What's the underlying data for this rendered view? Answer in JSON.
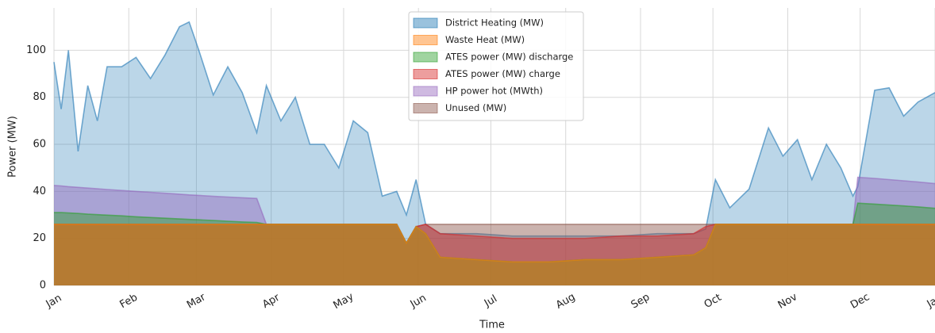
{
  "chart_data": {
    "type": "area",
    "xlabel": "Time",
    "ylabel": "Power (MW)",
    "x": [
      0,
      3,
      6,
      10,
      14,
      18,
      22,
      28,
      34,
      40,
      46,
      52,
      56,
      60,
      66,
      72,
      78,
      84,
      88,
      94,
      100,
      106,
      112,
      118,
      124,
      130,
      136,
      142,
      146,
      150,
      154,
      160,
      175,
      190,
      205,
      220,
      235,
      250,
      265,
      270,
      274,
      280,
      288,
      296,
      302,
      308,
      314,
      320,
      326,
      331,
      333,
      340,
      346,
      352,
      358,
      365
    ],
    "xlim": [
      0,
      365
    ],
    "xticks": [
      {
        "value": 0,
        "label": "Jan"
      },
      {
        "value": 31,
        "label": "Feb"
      },
      {
        "value": 59,
        "label": "Mar"
      },
      {
        "value": 90,
        "label": "Apr"
      },
      {
        "value": 120,
        "label": "May"
      },
      {
        "value": 151,
        "label": "Jun"
      },
      {
        "value": 181,
        "label": "Jul"
      },
      {
        "value": 212,
        "label": "Aug"
      },
      {
        "value": 243,
        "label": "Sep"
      },
      {
        "value": 273,
        "label": "Oct"
      },
      {
        "value": 304,
        "label": "Nov"
      },
      {
        "value": 334,
        "label": "Dec"
      },
      {
        "value": 365,
        "label": "Jan"
      }
    ],
    "ylim": [
      0,
      118
    ],
    "yticks": [
      0,
      20,
      40,
      60,
      80,
      100
    ],
    "grid": true,
    "legend": "upper center",
    "series": [
      {
        "name": "District Heating (MW)",
        "color": "#1f77b4",
        "values": [
          95,
          75,
          100,
          57,
          85,
          70,
          93,
          93,
          97,
          88,
          98,
          110,
          112,
          100,
          81,
          93,
          82,
          65,
          85,
          70,
          80,
          60,
          60,
          50,
          70,
          65,
          38,
          40,
          30,
          45,
          26,
          22,
          22,
          21,
          21,
          21,
          21,
          22,
          22,
          24,
          45,
          33,
          41,
          67,
          55,
          62,
          45,
          60,
          50,
          38,
          42,
          83,
          84,
          72,
          78,
          82
        ]
      },
      {
        "name": "Waste Heat (MW)",
        "color": "#ff7f0e",
        "values": [
          26,
          26,
          26,
          26,
          26,
          26,
          26,
          26,
          26,
          26,
          26,
          26,
          26,
          26,
          26,
          26,
          26,
          26,
          26,
          26,
          26,
          26,
          26,
          26,
          26,
          26,
          26,
          26,
          18,
          25,
          22,
          12,
          11,
          10,
          10,
          11,
          11,
          12,
          13,
          16,
          26,
          26,
          26,
          26,
          26,
          26,
          26,
          26,
          26,
          26,
          26,
          26,
          26,
          26,
          26,
          26
        ]
      },
      {
        "name": "ATES power (MW) discharge",
        "color": "#2ca02c",
        "values": [
          31,
          31,
          30.8,
          30.6,
          30.3,
          30.1,
          29.9,
          29.6,
          29.2,
          28.9,
          28.6,
          28.3,
          28.1,
          27.9,
          27.6,
          27.3,
          27,
          26.8,
          26,
          26,
          26,
          26,
          26,
          26,
          26,
          26,
          26,
          26,
          18,
          25,
          22,
          12,
          11,
          10,
          10,
          11,
          11,
          12,
          13,
          16,
          26,
          26,
          26,
          26,
          26,
          26,
          26,
          26,
          26,
          26,
          35,
          34.6,
          34.2,
          33.8,
          33.4,
          32.8
        ]
      },
      {
        "name": "ATES power (MW) charge",
        "color": "#d62728",
        "values": [
          26,
          26,
          26,
          26,
          26,
          26,
          26,
          26,
          26,
          26,
          26,
          26,
          26,
          26,
          26,
          26,
          26,
          26,
          26,
          26,
          26,
          26,
          26,
          26,
          26,
          26,
          26,
          26,
          18,
          25,
          26,
          22,
          21,
          20,
          20,
          20,
          21,
          21,
          22,
          25,
          26,
          26,
          26,
          26,
          26,
          26,
          26,
          26,
          26,
          26,
          26,
          26,
          26,
          26,
          26,
          26
        ]
      },
      {
        "name": "HP power hot (MWth)",
        "color": "#9467bd",
        "values": [
          42.5,
          42.3,
          42,
          41.7,
          41.4,
          41.1,
          40.8,
          40.4,
          40,
          39.6,
          39.2,
          38.8,
          38.5,
          38.3,
          37.9,
          37.6,
          37.3,
          37,
          26,
          26,
          26,
          26,
          26,
          26,
          26,
          26,
          26,
          26,
          18,
          25,
          22,
          12,
          11,
          10,
          10,
          11,
          11,
          12,
          13,
          16,
          26,
          26,
          26,
          26,
          26,
          26,
          26,
          26,
          26,
          26,
          46,
          45.5,
          45,
          44.5,
          44,
          43.3
        ]
      },
      {
        "name": "Unused (MW)",
        "color": "#8c564b",
        "values": [
          26,
          26,
          26,
          26,
          26,
          26,
          26,
          26,
          26,
          26,
          26,
          26,
          26,
          26,
          26,
          26,
          26,
          26,
          26,
          26,
          26,
          26,
          26,
          26,
          26,
          26,
          26,
          26,
          18,
          25,
          26,
          26,
          26,
          26,
          26,
          26,
          26,
          26,
          26,
          26,
          26,
          26,
          26,
          26,
          26,
          26,
          26,
          26,
          26,
          26,
          26,
          26,
          26,
          26,
          26,
          26
        ]
      }
    ]
  }
}
